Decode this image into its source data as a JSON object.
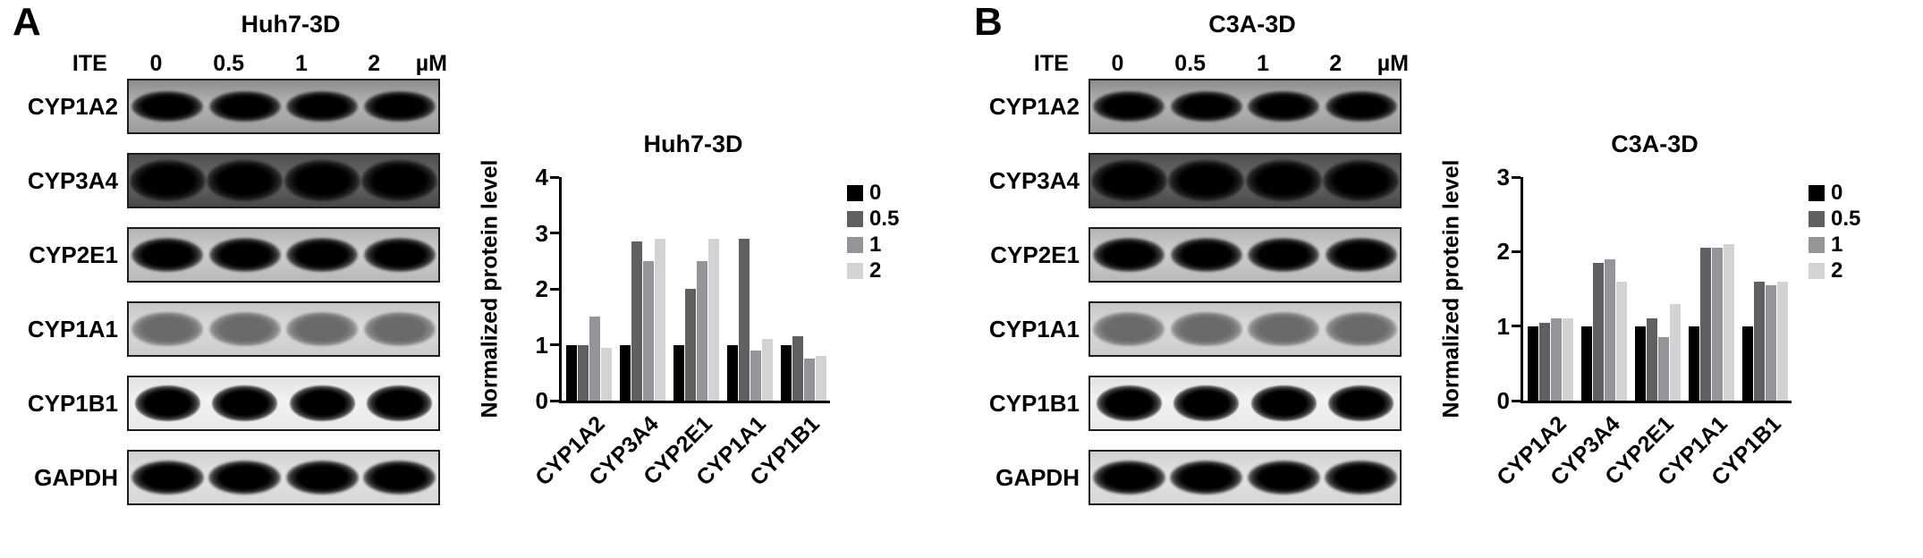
{
  "figure_background": "#ffffff",
  "panels": [
    {
      "label": "A",
      "blot_title": "Huh7-3D",
      "ite_label": "ITE",
      "unit_label": "µM",
      "doses": [
        "0",
        "0.5",
        "1",
        "2"
      ],
      "blot_rows": [
        "CYP1A2",
        "CYP3A4",
        "CYP2E1",
        "CYP1A1",
        "CYP1B1",
        "GAPDH"
      ]
    },
    {
      "label": "B",
      "blot_title": "C3A-3D",
      "ite_label": "ITE",
      "unit_label": "µM",
      "doses": [
        "0",
        "0.5",
        "1",
        "2"
      ],
      "blot_rows": [
        "CYP1A2",
        "CYP3A4",
        "CYP2E1",
        "CYP1A1",
        "CYP1B1",
        "GAPDH"
      ]
    }
  ],
  "chart_data": [
    {
      "type": "bar",
      "title": "Huh7-3D",
      "xlabel": "",
      "ylabel": "Normalized protein level",
      "ymax": 4,
      "ylim": [
        0,
        4
      ],
      "yticks": [
        0,
        1,
        2,
        3,
        4
      ],
      "grid": false,
      "legend_position": "right",
      "categories": [
        "CYP1A2",
        "CYP3A4",
        "CYP2E1",
        "CYP1A1",
        "CYP1B1"
      ],
      "series": [
        {
          "name": "0",
          "color": "#000000",
          "values": [
            1.0,
            1.0,
            1.0,
            1.0,
            1.0
          ]
        },
        {
          "name": "0.5",
          "color": "#5f6062",
          "values": [
            1.0,
            2.85,
            2.0,
            2.9,
            1.15
          ]
        },
        {
          "name": "1",
          "color": "#939598",
          "values": [
            1.5,
            2.5,
            2.5,
            0.9,
            0.75
          ]
        },
        {
          "name": "2",
          "color": "#d1d3d4",
          "values": [
            0.95,
            2.9,
            2.9,
            1.1,
            0.8
          ]
        }
      ]
    },
    {
      "type": "bar",
      "title": "C3A-3D",
      "xlabel": "",
      "ylabel": "Normalized protein level",
      "ymax": 3,
      "ylim": [
        0,
        3
      ],
      "yticks": [
        0,
        1,
        2,
        3
      ],
      "grid": false,
      "legend_position": "right",
      "categories": [
        "CYP1A2",
        "CYP3A4",
        "CYP2E1",
        "CYP1A1",
        "CYP1B1"
      ],
      "series": [
        {
          "name": "0",
          "color": "#000000",
          "values": [
            1.0,
            1.0,
            1.0,
            1.0,
            1.0
          ]
        },
        {
          "name": "0.5",
          "color": "#5f6062",
          "values": [
            1.05,
            1.85,
            1.1,
            2.05,
            1.6
          ]
        },
        {
          "name": "1",
          "color": "#939598",
          "values": [
            1.1,
            1.9,
            0.85,
            2.05,
            1.55
          ]
        },
        {
          "name": "2",
          "color": "#d1d3d4",
          "values": [
            1.1,
            1.6,
            1.3,
            2.1,
            1.6
          ]
        }
      ]
    }
  ]
}
